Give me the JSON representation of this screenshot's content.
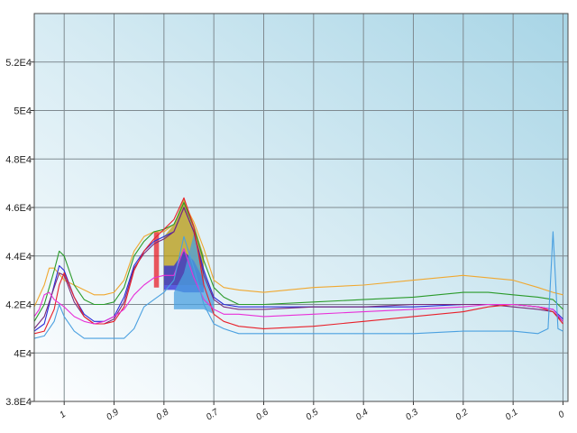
{
  "chart_data": {
    "type": "line",
    "title": "",
    "xlabel": "",
    "ylabel": "",
    "x_reversed": true,
    "xlim": [
      1.06,
      -0.01
    ],
    "ylim": [
      38000,
      54000
    ],
    "grid": true,
    "x_ticks": [
      {
        "value": 1.0,
        "label": "1"
      },
      {
        "value": 0.9,
        "label": "0.9"
      },
      {
        "value": 0.8,
        "label": "0.8"
      },
      {
        "value": 0.7,
        "label": "0.7"
      },
      {
        "value": 0.6,
        "label": "0.6"
      },
      {
        "value": 0.5,
        "label": "0.5"
      },
      {
        "value": 0.4,
        "label": "0.4"
      },
      {
        "value": 0.3,
        "label": "0.3"
      },
      {
        "value": 0.2,
        "label": "0.2"
      },
      {
        "value": 0.1,
        "label": "0.1"
      },
      {
        "value": 0.0,
        "label": "0"
      }
    ],
    "y_ticks": [
      {
        "value": 38000,
        "label": "3.8E4"
      },
      {
        "value": 40000,
        "label": "4E4"
      },
      {
        "value": 42000,
        "label": "4.2E4"
      },
      {
        "value": 44000,
        "label": "4.4E4"
      },
      {
        "value": 46000,
        "label": "4.6E4"
      },
      {
        "value": 48000,
        "label": "4.8E4"
      },
      {
        "value": 50000,
        "label": "5E4"
      },
      {
        "value": 52000,
        "label": "5.2E4"
      }
    ],
    "series": [
      {
        "color": "#f0a830",
        "x": [
          1.06,
          1.04,
          1.03,
          1.02,
          1.0,
          0.98,
          0.96,
          0.94,
          0.92,
          0.9,
          0.88,
          0.86,
          0.84,
          0.82,
          0.8,
          0.78,
          0.76,
          0.74,
          0.72,
          0.7,
          0.68,
          0.65,
          0.6,
          0.5,
          0.4,
          0.3,
          0.2,
          0.15,
          0.1,
          0.05,
          0.02,
          0.0
        ],
        "y": [
          41900,
          42800,
          43500,
          43500,
          43000,
          42800,
          42600,
          42400,
          42400,
          42500,
          43000,
          44200,
          44800,
          45000,
          45000,
          45300,
          46200,
          45400,
          44300,
          43000,
          42700,
          42600,
          42500,
          42700,
          42800,
          43000,
          43200,
          43100,
          43000,
          42700,
          42500,
          42400
        ]
      },
      {
        "color": "#2a9a2a",
        "x": [
          1.06,
          1.04,
          1.02,
          1.01,
          1.0,
          0.98,
          0.96,
          0.94,
          0.92,
          0.9,
          0.88,
          0.86,
          0.84,
          0.82,
          0.8,
          0.78,
          0.76,
          0.74,
          0.72,
          0.7,
          0.68,
          0.65,
          0.6,
          0.5,
          0.4,
          0.3,
          0.2,
          0.15,
          0.1,
          0.05,
          0.02,
          0.0
        ],
        "y": [
          41300,
          42000,
          43400,
          44200,
          44000,
          42800,
          42200,
          42000,
          42000,
          42100,
          42700,
          44000,
          44600,
          45000,
          45100,
          45300,
          46200,
          45200,
          43800,
          42700,
          42300,
          42000,
          42000,
          42100,
          42200,
          42300,
          42500,
          42500,
          42400,
          42300,
          42200,
          41800
        ]
      },
      {
        "color": "#2a2ad8",
        "x": [
          1.06,
          1.04,
          1.02,
          1.01,
          1.0,
          0.98,
          0.96,
          0.94,
          0.92,
          0.9,
          0.88,
          0.86,
          0.84,
          0.82,
          0.8,
          0.78,
          0.76,
          0.74,
          0.72,
          0.7,
          0.68,
          0.65,
          0.6,
          0.5,
          0.4,
          0.3,
          0.2,
          0.15,
          0.1,
          0.05,
          0.02,
          0.0
        ],
        "y": [
          40900,
          41200,
          42800,
          43600,
          43400,
          42300,
          41600,
          41300,
          41300,
          41500,
          42300,
          43600,
          44200,
          44600,
          44800,
          45000,
          46000,
          45000,
          43400,
          42300,
          42000,
          41900,
          41900,
          41900,
          41900,
          41900,
          42000,
          42000,
          42000,
          41900,
          41800,
          41400
        ]
      },
      {
        "color": "#7a2a7a",
        "x": [
          1.06,
          1.04,
          1.02,
          1.01,
          1.0,
          0.98,
          0.96,
          0.94,
          0.92,
          0.9,
          0.88,
          0.86,
          0.84,
          0.82,
          0.8,
          0.78,
          0.76,
          0.74,
          0.72,
          0.7,
          0.68,
          0.65,
          0.6,
          0.5,
          0.4,
          0.3,
          0.2,
          0.15,
          0.1,
          0.05,
          0.02,
          0.0
        ],
        "y": [
          41000,
          41500,
          42700,
          43300,
          43200,
          42100,
          41500,
          41200,
          41200,
          41400,
          42100,
          43500,
          44100,
          44500,
          44700,
          45000,
          46000,
          45000,
          43200,
          42200,
          41900,
          41800,
          41800,
          41900,
          41900,
          42000,
          42000,
          42000,
          41900,
          41800,
          41700,
          41300
        ]
      },
      {
        "color": "#e8202a",
        "x": [
          1.06,
          1.04,
          1.02,
          1.01,
          1.0,
          0.98,
          0.96,
          0.94,
          0.92,
          0.9,
          0.88,
          0.86,
          0.84,
          0.82,
          0.8,
          0.78,
          0.76,
          0.74,
          0.72,
          0.7,
          0.68,
          0.65,
          0.6,
          0.5,
          0.4,
          0.3,
          0.2,
          0.15,
          0.1,
          0.05,
          0.02,
          0.0
        ],
        "y": [
          40800,
          40900,
          41800,
          42800,
          43300,
          42300,
          41500,
          41200,
          41200,
          41300,
          41900,
          43400,
          44200,
          44700,
          45100,
          45500,
          46400,
          45200,
          42800,
          41600,
          41300,
          41100,
          41000,
          41100,
          41300,
          41500,
          41700,
          41900,
          42000,
          41900,
          41700,
          41200
        ]
      },
      {
        "color": "#e830d8",
        "x": [
          1.06,
          1.05,
          1.04,
          1.03,
          1.02,
          1.0,
          0.98,
          0.96,
          0.94,
          0.92,
          0.9,
          0.88,
          0.86,
          0.84,
          0.82,
          0.8,
          0.78,
          0.76,
          0.74,
          0.72,
          0.7,
          0.68,
          0.65,
          0.6,
          0.5,
          0.4,
          0.3,
          0.2,
          0.15,
          0.1,
          0.05,
          0.02,
          0.0
        ],
        "y": [
          41500,
          41800,
          42400,
          42500,
          42200,
          41900,
          41500,
          41300,
          41200,
          41300,
          41500,
          41800,
          42400,
          42800,
          43100,
          43200,
          43200,
          44300,
          43100,
          42200,
          41800,
          41600,
          41600,
          41500,
          41600,
          41700,
          41800,
          41900,
          42000,
          42000,
          41900,
          41800,
          41300
        ]
      },
      {
        "color": "#4aa0e0",
        "x": [
          1.06,
          1.04,
          1.02,
          1.01,
          1.0,
          0.98,
          0.96,
          0.94,
          0.92,
          0.9,
          0.88,
          0.86,
          0.84,
          0.82,
          0.8,
          0.78,
          0.76,
          0.74,
          0.72,
          0.7,
          0.68,
          0.65,
          0.6,
          0.5,
          0.4,
          0.3,
          0.2,
          0.15,
          0.1,
          0.05,
          0.03,
          0.02,
          0.015,
          0.01,
          0.0
        ],
        "y": [
          40600,
          40700,
          41300,
          42000,
          41500,
          40900,
          40600,
          40600,
          40600,
          40600,
          40600,
          41000,
          41900,
          42200,
          42500,
          43000,
          44800,
          43500,
          42000,
          41200,
          41000,
          40800,
          40800,
          40800,
          40800,
          40800,
          40900,
          40900,
          40900,
          40800,
          41000,
          45000,
          43000,
          41000,
          40900
        ]
      }
    ],
    "bands": [
      {
        "color": "#e8202a",
        "x": [
          0.82,
          0.81
        ],
        "y_low": [
          42700,
          42700
        ],
        "y_high": [
          45000,
          45000
        ]
      },
      {
        "color": "#b89a10",
        "x": [
          0.8,
          0.78,
          0.76,
          0.74,
          0.72
        ],
        "y_low": [
          42800,
          42800,
          42800,
          42800,
          42800
        ],
        "y_high": [
          44800,
          45300,
          46400,
          45300,
          44000
        ]
      },
      {
        "color": "#2a2ad8",
        "x": [
          0.8,
          0.78,
          0.76,
          0.74,
          0.72
        ],
        "y_low": [
          42600,
          42600,
          42500,
          42500,
          42500
        ],
        "y_high": [
          43600,
          43600,
          44200,
          43800,
          43000
        ]
      },
      {
        "color": "#4aa0e0",
        "x": [
          0.78,
          0.76,
          0.74,
          0.72,
          0.7
        ],
        "y_low": [
          41800,
          41800,
          41800,
          41800,
          41600
        ],
        "y_high": [
          42500,
          43300,
          44900,
          43500,
          42200
        ]
      }
    ]
  }
}
